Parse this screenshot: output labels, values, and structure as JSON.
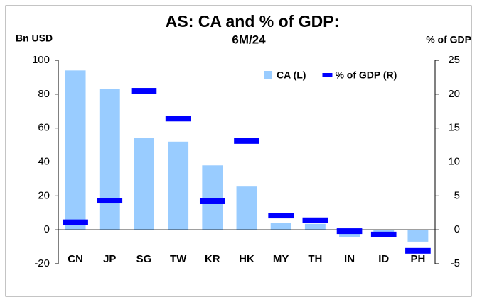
{
  "chart_data": {
    "type": "bar",
    "title": "AS: CA and % of GDP:",
    "subtitle": "6M/24",
    "ylabel": "Bn USD",
    "y2label": "% of GDP",
    "categories": [
      "CN",
      "JP",
      "SG",
      "TW",
      "KR",
      "HK",
      "MY",
      "TH",
      "IN",
      "ID",
      "PH"
    ],
    "series": [
      {
        "name": "CA (L)",
        "type": "bar",
        "color": "#99ccff",
        "axis": "y",
        "values": [
          94,
          83,
          54,
          52,
          38,
          25.5,
          4,
          3.5,
          -4.5,
          -4,
          -7
        ]
      },
      {
        "name": "% of GDP (R)",
        "type": "marker",
        "color": "#0000ff",
        "axis": "y2",
        "values": [
          1.1,
          4.3,
          20.5,
          16.4,
          4.2,
          13.1,
          2.1,
          1.4,
          -0.2,
          -0.7,
          -3.1
        ]
      }
    ],
    "ylim": [
      -20,
      100
    ],
    "yticks": [
      -20,
      0,
      20,
      40,
      60,
      80,
      100
    ],
    "y2lim": [
      -5,
      25
    ],
    "y2ticks": [
      -5,
      0,
      5,
      10,
      15,
      20,
      25
    ],
    "grid": false,
    "legend": "top-right"
  }
}
